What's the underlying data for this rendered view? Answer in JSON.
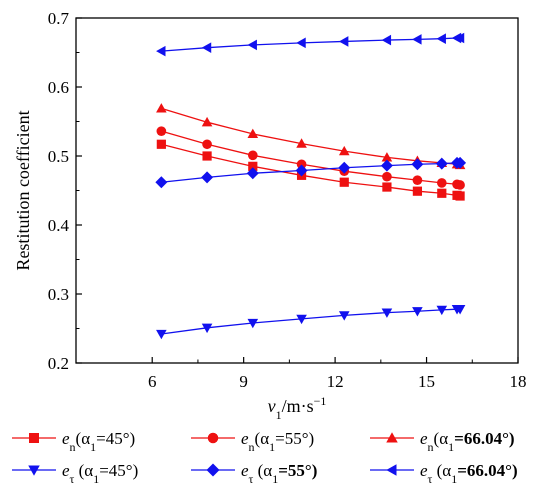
{
  "chart_data": {
    "type": "line",
    "xlabel": {
      "main": "v",
      "sub": "1",
      "rest": "/m·s",
      "sup": "−1"
    },
    "ylabel": "Restitution coefficient",
    "xlim": [
      3.5,
      18
    ],
    "ylim": [
      0.2,
      0.7
    ],
    "xticks": [
      6,
      9,
      12,
      15,
      18
    ],
    "yticks": [
      0.2,
      0.3,
      0.4,
      0.5,
      0.6,
      0.7
    ],
    "xtick_labels": [
      "6",
      "9",
      "12",
      "15",
      "18"
    ],
    "ytick_labels": [
      "0.2",
      "0.3",
      "0.4",
      "0.5",
      "0.6",
      "0.7"
    ],
    "grid": false,
    "legend_position": "bottom",
    "x": [
      6.3,
      7.8,
      9.3,
      10.9,
      12.3,
      13.7,
      14.7,
      15.5,
      16.0,
      16.1
    ],
    "series": [
      {
        "name": "en(α1=45°)",
        "legend": {
          "sym": "e",
          "symSub": "n",
          "open": "(",
          "alpha": "α",
          "alphaSub": "1",
          "value": "=45°)",
          "bold": false
        },
        "color": "#ee1111",
        "marker": "square",
        "values": [
          0.517,
          0.5,
          0.485,
          0.472,
          0.462,
          0.455,
          0.449,
          0.446,
          0.443,
          0.442
        ]
      },
      {
        "name": "en(α1=55°)",
        "legend": {
          "sym": "e",
          "symSub": "n",
          "open": "(",
          "alpha": "α",
          "alphaSub": "1",
          "value": "=55°)",
          "bold": false
        },
        "color": "#ee1111",
        "marker": "circle",
        "values": [
          0.536,
          0.517,
          0.501,
          0.488,
          0.478,
          0.47,
          0.465,
          0.461,
          0.459,
          0.458
        ]
      },
      {
        "name": "en(α1=66.04°)",
        "legend": {
          "sym": "e",
          "symSub": "n",
          "open": "(",
          "alpha": "α",
          "alphaSub": "1",
          "value": "=66.04°)",
          "bold": true
        },
        "color": "#ee1111",
        "marker": "triangle-up",
        "values": [
          0.569,
          0.549,
          0.532,
          0.518,
          0.507,
          0.498,
          0.493,
          0.49,
          0.488,
          0.487
        ]
      },
      {
        "name": "eτ (α1=45°)",
        "legend": {
          "sym": "e",
          "symSub": "τ",
          "open": " (",
          "alpha": "α",
          "alphaSub": "1",
          "value": "=45°)",
          "bold": false
        },
        "color": "#1111ee",
        "marker": "triangle-down",
        "values": [
          0.242,
          0.251,
          0.258,
          0.264,
          0.269,
          0.273,
          0.275,
          0.277,
          0.278,
          0.278
        ]
      },
      {
        "name": "eτ (α1=55°)",
        "legend": {
          "sym": "e",
          "symSub": "τ",
          "open": " (",
          "alpha": "α",
          "alphaSub": "1",
          "value": "=55°)",
          "bold": true
        },
        "color": "#1111ee",
        "marker": "diamond",
        "values": [
          0.462,
          0.469,
          0.475,
          0.479,
          0.483,
          0.486,
          0.488,
          0.489,
          0.49,
          0.49
        ]
      },
      {
        "name": "eτ (α1=66.04°)",
        "legend": {
          "sym": "e",
          "symSub": "τ",
          "open": " (",
          "alpha": "α",
          "alphaSub": "1",
          "value": "=66.04°)",
          "bold": true
        },
        "color": "#1111ee",
        "marker": "triangle-left",
        "values": [
          0.652,
          0.657,
          0.661,
          0.664,
          0.666,
          0.668,
          0.669,
          0.67,
          0.671,
          0.671
        ]
      }
    ]
  }
}
